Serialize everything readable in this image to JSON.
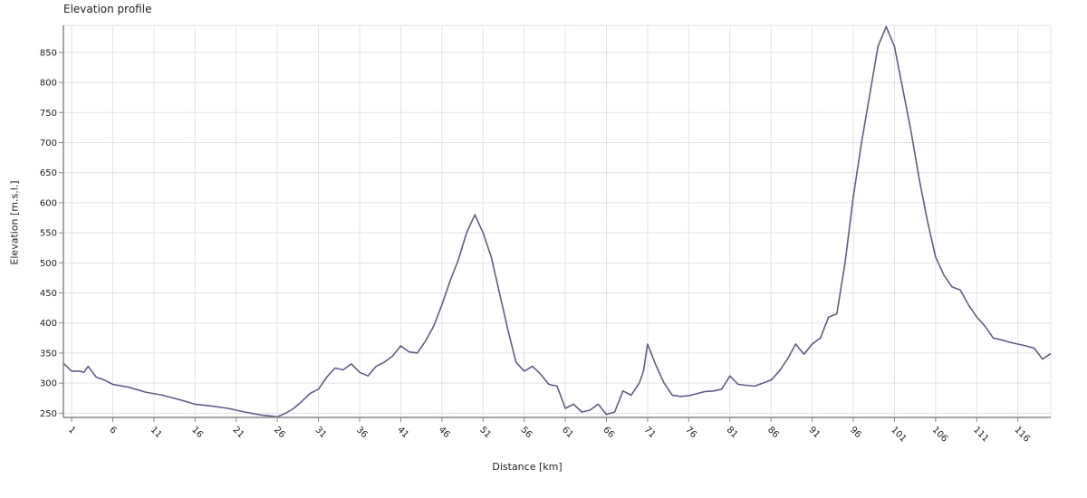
{
  "chart_data": {
    "type": "line",
    "title": "Elevation profile",
    "xlabel": "Distance [km]",
    "ylabel": "Elevation [m.s.l.]",
    "xlim": [
      0,
      120
    ],
    "ylim": [
      243,
      895
    ],
    "x_ticks": [
      1,
      6,
      11,
      16,
      21,
      26,
      31,
      36,
      41,
      46,
      51,
      56,
      61,
      66,
      71,
      76,
      81,
      86,
      91,
      96,
      101,
      106,
      111,
      116
    ],
    "y_ticks": [
      250,
      300,
      350,
      400,
      450,
      500,
      550,
      600,
      650,
      700,
      750,
      800,
      850
    ],
    "grid": true,
    "legend": "none",
    "colors": {
      "line": "#5d5f8a",
      "grid": "#e3e3e3",
      "axis": "#888888"
    },
    "series": [
      {
        "x": [
          0,
          1,
          2,
          2.5,
          3,
          4,
          5,
          6,
          8,
          10,
          12,
          14,
          16,
          18,
          20,
          21,
          22,
          24,
          26,
          27,
          28,
          29,
          30,
          31,
          32,
          33,
          34,
          35,
          36,
          37,
          38,
          39,
          40,
          41,
          42,
          43,
          44,
          45,
          46,
          47,
          48,
          49,
          50,
          51,
          52,
          53,
          54,
          55,
          56,
          57,
          58,
          59,
          60,
          61,
          62,
          63,
          64,
          65,
          66,
          67,
          68,
          69,
          70,
          70.5,
          71,
          72,
          73,
          74,
          75,
          76,
          78,
          79,
          80,
          81,
          82,
          84,
          85,
          86,
          87,
          88,
          89,
          90,
          91,
          92,
          93,
          94,
          95,
          96,
          97,
          98,
          99,
          100,
          101,
          102,
          103,
          104,
          105,
          106,
          107,
          108,
          109,
          110,
          111,
          112,
          113,
          114,
          115,
          116,
          117,
          118,
          119,
          120
        ],
        "y": [
          333,
          320,
          320,
          318,
          328,
          310,
          305,
          298,
          293,
          285,
          280,
          273,
          265,
          262,
          258,
          255,
          252,
          247,
          244,
          250,
          258,
          270,
          283,
          290,
          310,
          325,
          322,
          332,
          318,
          312,
          328,
          335,
          345,
          362,
          352,
          350,
          370,
          395,
          430,
          470,
          505,
          550,
          580,
          550,
          510,
          450,
          390,
          335,
          320,
          328,
          315,
          298,
          295,
          258,
          265,
          252,
          255,
          265,
          248,
          252,
          287,
          280,
          300,
          320,
          365,
          330,
          300,
          280,
          278,
          279,
          286,
          287,
          290,
          312,
          298,
          295,
          300,
          305,
          320,
          340,
          365,
          348,
          365,
          375,
          410,
          415,
          500,
          610,
          700,
          780,
          860,
          893,
          860,
          790,
          720,
          640,
          570,
          510,
          480,
          460,
          455,
          430,
          410,
          395,
          375,
          372,
          368,
          365,
          362,
          358,
          340,
          349
        ]
      }
    ]
  }
}
